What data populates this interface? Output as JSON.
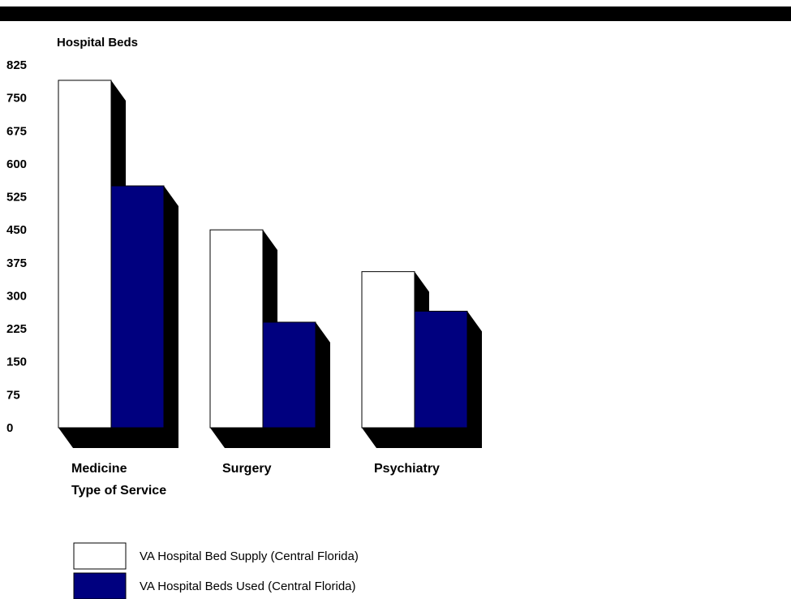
{
  "chart_data": {
    "type": "bar",
    "ylabel": "Hospital Beds",
    "xlabel": "Type of Service",
    "categories": [
      "Medicine",
      "Surgery",
      "Psychiatry"
    ],
    "series": [
      {
        "name": "VA Hospital Bed Supply (Central Florida)",
        "values": [
          790,
          450,
          355
        ],
        "color": "#ffffff"
      },
      {
        "name": "VA Hospital Beds Used (Central Florida)",
        "values": [
          550,
          240,
          265
        ],
        "color": "#00007f"
      }
    ],
    "yticks": [
      0,
      75,
      150,
      225,
      300,
      375,
      450,
      525,
      600,
      675,
      750,
      825
    ],
    "ylim": [
      0,
      825
    ],
    "grid": false,
    "legend_position": "bottom-left",
    "style": "3d-shadow",
    "shadow_color": "#000000"
  }
}
